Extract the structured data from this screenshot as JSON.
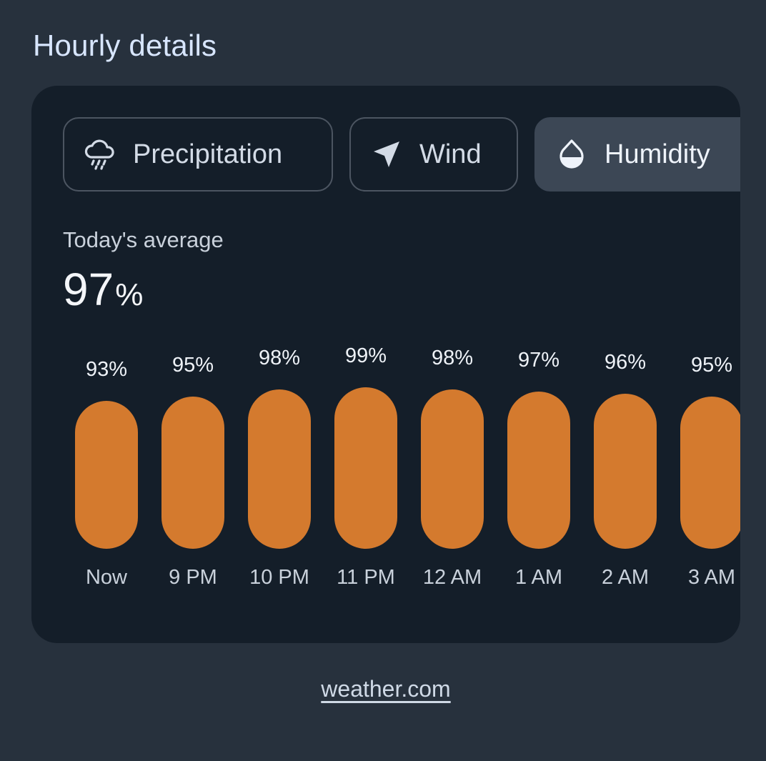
{
  "header": {
    "title": "Hourly details"
  },
  "tabs": [
    {
      "label": "Precipitation",
      "icon": "rain-cloud-icon",
      "active": false
    },
    {
      "label": "Wind",
      "icon": "navigation-arrow-icon",
      "active": false
    },
    {
      "label": "Humidity",
      "icon": "water-drop-icon",
      "active": true
    }
  ],
  "summary": {
    "label": "Today's average",
    "value": "97",
    "unit": "%"
  },
  "chart_data": {
    "type": "bar",
    "categories": [
      "Now",
      "9 PM",
      "10 PM",
      "11 PM",
      "12 AM",
      "1 AM",
      "2 AM",
      "3 AM"
    ],
    "values": [
      93,
      95,
      98,
      99,
      98,
      97,
      96,
      95
    ],
    "data_labels": [
      "93%",
      "95%",
      "98%",
      "99%",
      "98%",
      "97%",
      "96%",
      "95%"
    ],
    "bar_color": "#d47a2e"
  },
  "footer": {
    "source_link": "weather.com"
  }
}
